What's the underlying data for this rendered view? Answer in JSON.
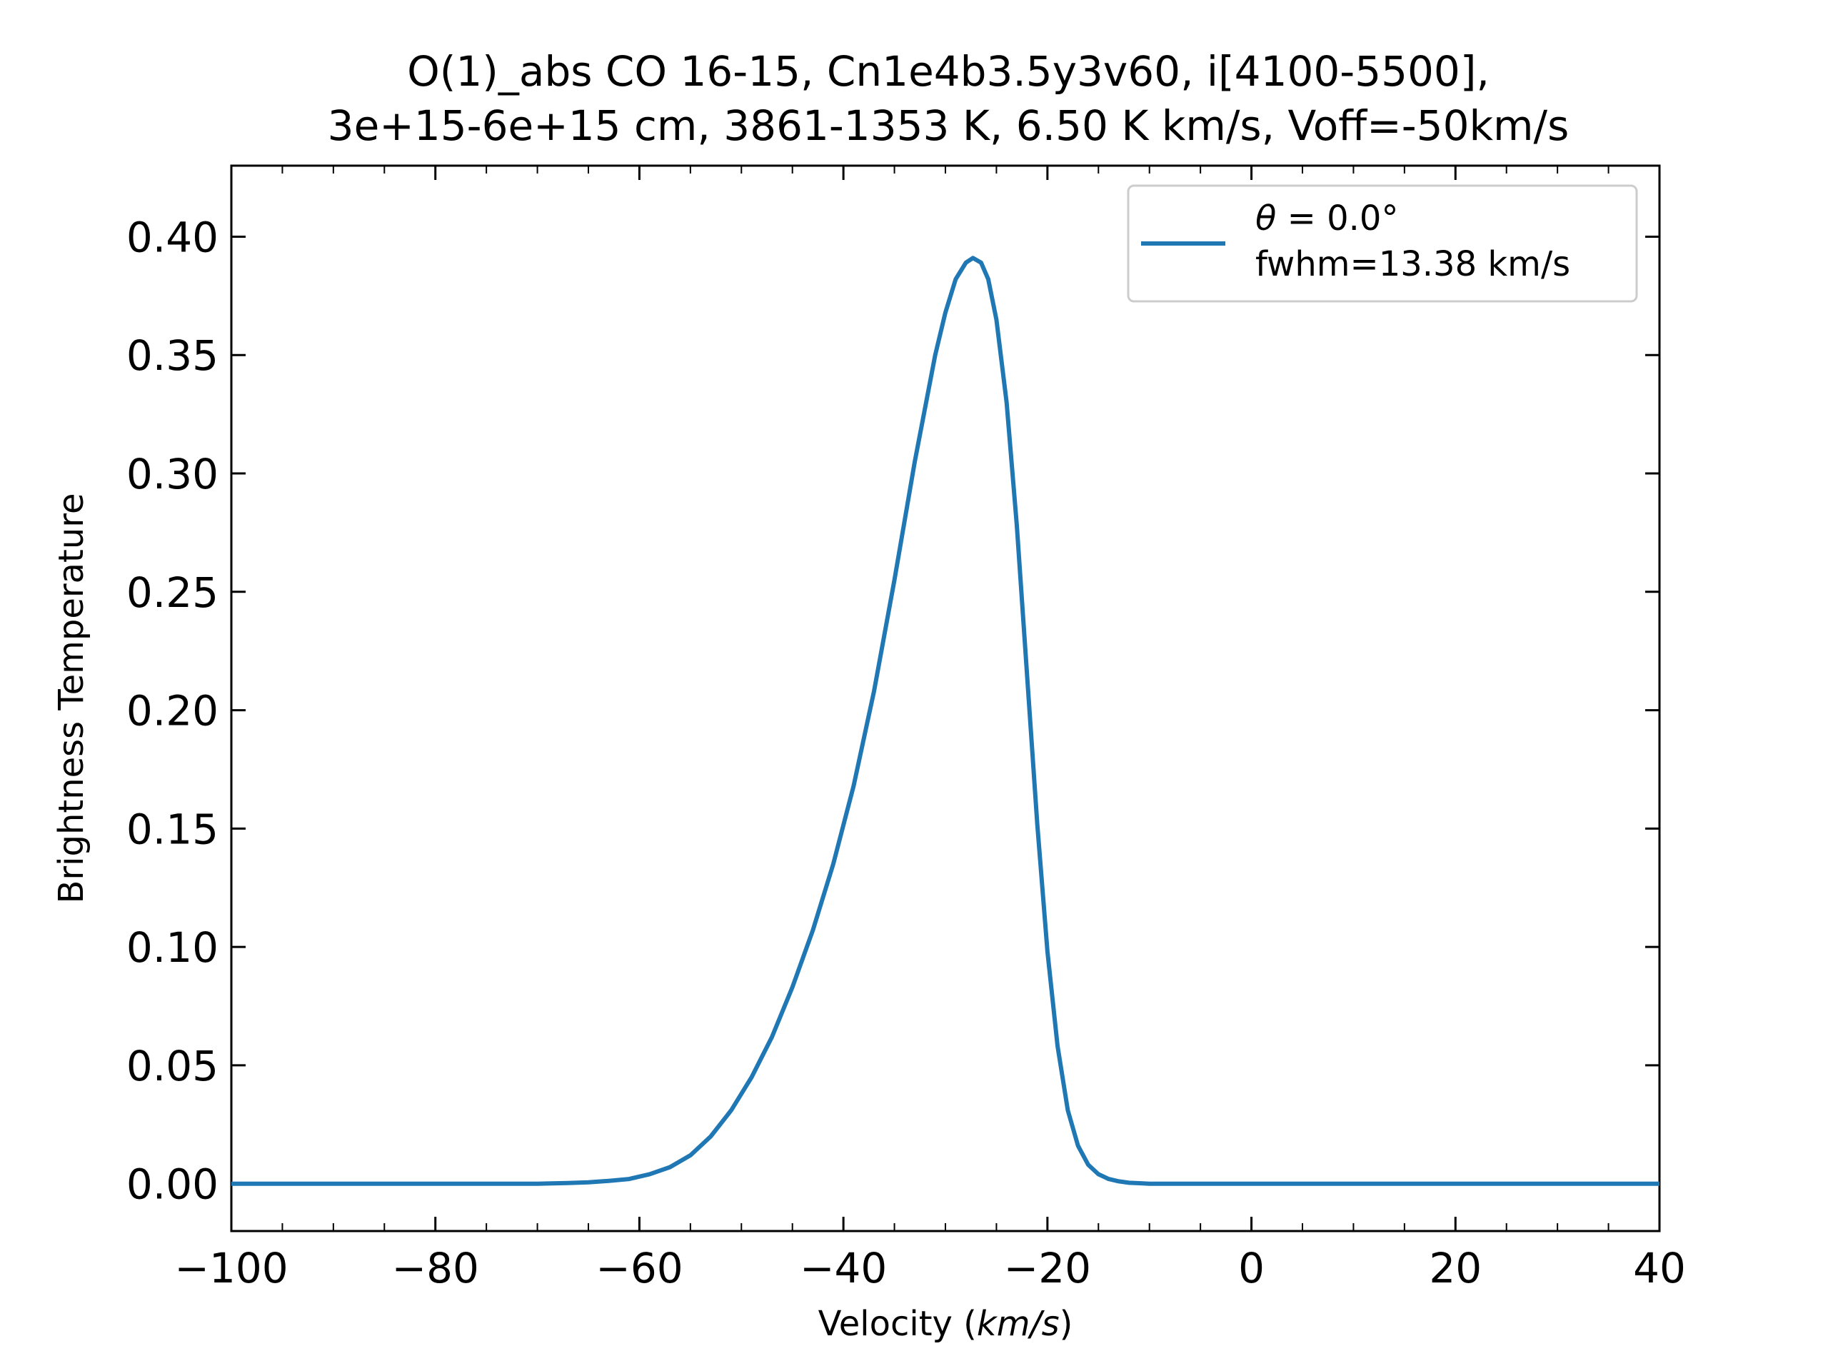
{
  "chart_data": {
    "type": "line",
    "title_line1": "O(1)_abs CO 16-15, Cn1e4b3.5y3v60, i[4100-5500],",
    "title_line2": "3e+15-6e+15 cm, 3861-1353 K, 6.50 K km/s, Voff=-50km/s",
    "xlabel_prefix": "Velocity (",
    "xlabel_unit": "km/s",
    "xlabel_suffix": ")",
    "ylabel": "Brightness Temperature",
    "xlim": [
      -100,
      40
    ],
    "ylim": [
      -0.02,
      0.43
    ],
    "xticks": [
      -100,
      -80,
      -60,
      -40,
      -20,
      0,
      20,
      40
    ],
    "xtick_labels": [
      "−100",
      "−80",
      "−60",
      "−40",
      "−20",
      "0",
      "20",
      "40"
    ],
    "yticks": [
      0.0,
      0.05,
      0.1,
      0.15,
      0.2,
      0.25,
      0.3,
      0.35,
      0.4
    ],
    "ytick_labels": [
      "0.00",
      "0.05",
      "0.10",
      "0.15",
      "0.20",
      "0.25",
      "0.30",
      "0.35",
      "0.40"
    ],
    "grid": false,
    "legend_position": "upper right",
    "legend_theta_symbol": "θ",
    "legend_theta_value": " = 0.0°",
    "series": [
      {
        "name": "fwhm=13.38 km/s",
        "color": "#1f77b4",
        "x": [
          -100,
          -90,
          -80,
          -75,
          -70,
          -67,
          -65,
          -63,
          -61,
          -59,
          -57,
          -55,
          -53,
          -51,
          -49,
          -47,
          -45,
          -43,
          -41,
          -39,
          -37,
          -35,
          -33,
          -31,
          -30,
          -29,
          -28,
          -27.3,
          -26.5,
          -25.8,
          -25,
          -24,
          -23,
          -22,
          -21,
          -20,
          -19,
          -18,
          -17,
          -16,
          -15,
          -14,
          -13,
          -12,
          -11,
          -10,
          -8,
          0,
          20,
          40
        ],
        "y": [
          0.0,
          0.0,
          0.0,
          0.0,
          0.0,
          0.0003,
          0.0006,
          0.0012,
          0.002,
          0.004,
          0.007,
          0.012,
          0.02,
          0.031,
          0.045,
          0.062,
          0.083,
          0.107,
          0.135,
          0.168,
          0.208,
          0.255,
          0.305,
          0.35,
          0.368,
          0.382,
          0.389,
          0.391,
          0.389,
          0.382,
          0.365,
          0.33,
          0.278,
          0.215,
          0.152,
          0.098,
          0.058,
          0.031,
          0.016,
          0.008,
          0.004,
          0.002,
          0.001,
          0.0004,
          0.0002,
          0.0,
          0.0,
          0.0,
          0.0,
          0.0
        ]
      }
    ]
  }
}
